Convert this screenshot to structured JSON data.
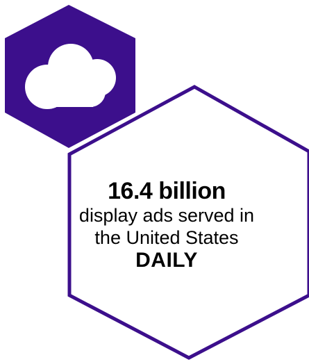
{
  "colors": {
    "accent": "#3c0f8c",
    "outline": "#3c0f8c",
    "cloud": "#ffffff",
    "text": "#000000"
  },
  "icon": {
    "name": "cloud-icon"
  },
  "stat": {
    "value": "16.4 billion",
    "description": "display ads served in the United States",
    "emphasis": "DAILY"
  }
}
